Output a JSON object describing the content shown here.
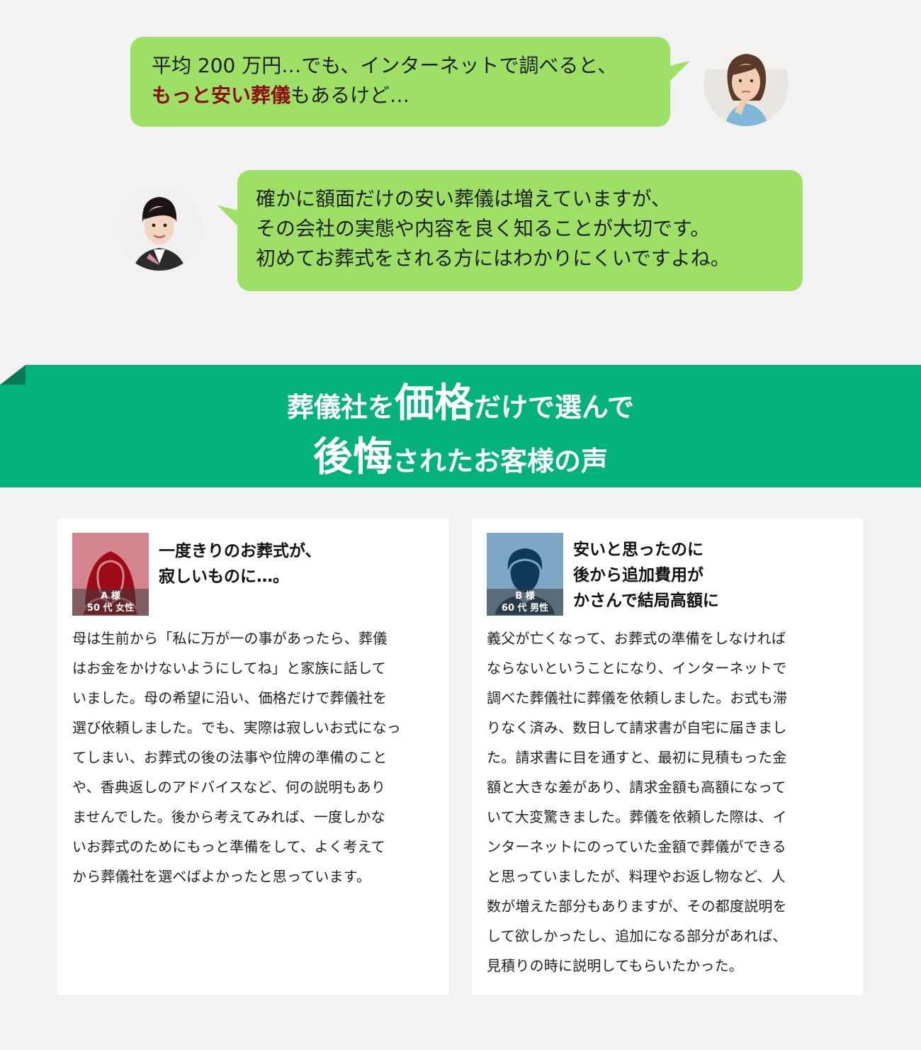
{
  "dialog": {
    "customer": {
      "lines": [
        "平均 200 万円…でも、インターネットで調べると、"
      ],
      "line2_emph": "もっと安い葬儀",
      "line2_rest": "もあるけど…",
      "colors": {
        "bubble": "#9ee066",
        "emphasis": "#8b0e0e"
      }
    },
    "staff": {
      "lines": [
        "確かに額面だけの安い葬儀は増えていますが、",
        "その会社の実態や内容を良く知ることが大切です。",
        "初めてお葬式をされる方にはわかりにくいですよね。"
      ]
    }
  },
  "banner": {
    "color": "#02b27a",
    "line1_a": "葬儀社を",
    "line1_big": "価格",
    "line1_b": "だけで選んで",
    "line2_big": "後悔",
    "line2_b": "されたお客様の声"
  },
  "voices": [
    {
      "tag_name": "A 様",
      "tag_info": "50 代 女性",
      "title": [
        "一度きりのお葬式が、",
        "寂しいものに…。"
      ],
      "body": [
        "母は生前から「私に万が一の事があったら、葬儀",
        "はお金をかけないようにしてね」と家族に話して",
        "いました。母の希望に沿い、価格だけで葬儀社を",
        "選び依頼しました。でも、実際は寂しいお式になっ",
        "てしまい、お葬式の後の法事や位牌の準備のこと",
        "や、香典返しのアドバイスなど、何の説明もあり",
        "ませんでした。後から考えてみれば、一度しかな",
        "いお葬式のためにもっと準備をして、よく考えて",
        "から葬儀社を選べばよかったと思っています。"
      ],
      "photo_color": "#d4848e",
      "figure_color": "#9c0b16"
    },
    {
      "tag_name": "B 様",
      "tag_info": "60 代 男性",
      "title": [
        "安いと思ったのに",
        "後から追加費用が",
        "かさんで結局高額に"
      ],
      "body": [
        "義父が亡くなって、お葬式の準備をしなければ",
        "ならないということになり、インターネットで",
        "調べた葬儀社に葬儀を依頼しました。お式も滞",
        "りなく済み、数日して請求書が自宅に届きまし",
        "た。請求書に目を通すと、最初に見積もった金",
        "額と大きな差があり、請求金額も高額になって",
        "いて大変驚きました。葬儀を依頼した際は、イ",
        "ンターネットにのっていた金額で葬儀ができる",
        "と思っていましたが、料理やお返し物など、人",
        "数が増えた部分もありますが、その都度説明を",
        "して欲しかったし、追加になる部分があれば、",
        "見積りの時に説明してもらいたかった。"
      ],
      "photo_color": "#7da7c4",
      "figure_color": "#0e3a5a"
    }
  ]
}
